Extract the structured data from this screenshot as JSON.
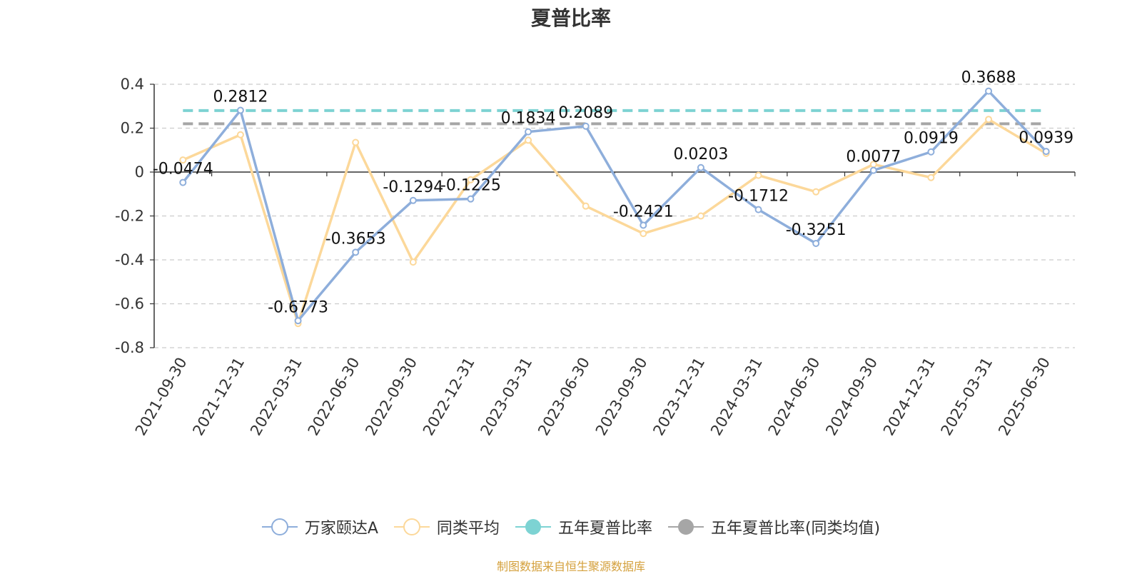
{
  "title": "夏普比率",
  "source_note": "制图数据来自恒生聚源数据库",
  "colors": {
    "series_main": "#8eaedb",
    "series_peer": "#fcd89a",
    "five_year": "#7dd3d3",
    "five_year_peer": "#a6a6a6",
    "source_text": "#d4a03c",
    "grid": "#cccccc",
    "axis": "#333333"
  },
  "chart_data": {
    "type": "line",
    "title": "夏普比率",
    "categories": [
      "2021-09-30",
      "2021-12-31",
      "2022-03-31",
      "2022-06-30",
      "2022-09-30",
      "2022-12-31",
      "2023-03-31",
      "2023-06-30",
      "2023-09-30",
      "2023-12-31",
      "2024-03-31",
      "2024-06-30",
      "2024-09-30",
      "2024-12-31",
      "2025-03-31",
      "2025-06-30"
    ],
    "y_ticks": [
      0.4,
      0.2,
      0,
      -0.2,
      -0.4,
      -0.6,
      -0.8
    ],
    "y_tick_labels": [
      "0.4",
      "0.2",
      "0",
      "-0.2",
      "-0.4",
      "-0.6",
      "-0.8"
    ],
    "ylim": [
      -0.8,
      0.4
    ],
    "grid": true,
    "legend_position": "bottom",
    "series": [
      {
        "name": "万家颐达A",
        "values": [
          -0.0474,
          0.2812,
          -0.6773,
          -0.3653,
          -0.1294,
          -0.1225,
          0.1834,
          0.2089,
          -0.2421,
          0.0203,
          -0.1712,
          -0.3251,
          0.0077,
          0.0919,
          0.3688,
          0.0939
        ],
        "labels": [
          "-0.0474",
          "0.2812",
          "-0.6773",
          "-0.3653",
          "-0.1294",
          "-0.1225",
          "0.1834",
          "0.2089",
          "-0.2421",
          "0.0203",
          "-0.1712",
          "-0.3251",
          "0.0077",
          "0.0919",
          "0.3688",
          "0.0939"
        ]
      },
      {
        "name": "同类平均",
        "values": [
          0.055,
          0.17,
          -0.69,
          0.135,
          -0.41,
          -0.035,
          0.145,
          -0.155,
          -0.28,
          -0.2,
          -0.015,
          -0.09,
          0.035,
          -0.025,
          0.24,
          0.085
        ]
      }
    ],
    "reference_lines": [
      {
        "name": "五年夏普比率",
        "value": 0.28
      },
      {
        "name": "五年夏普比率(同类均值)",
        "value": 0.22
      }
    ]
  },
  "legend": [
    {
      "name": "万家颐达A",
      "icon": "hollow-circle-line-icon"
    },
    {
      "name": "同类平均",
      "icon": "hollow-circle-line-icon"
    },
    {
      "name": "五年夏普比率",
      "icon": "filled-circle-line-icon"
    },
    {
      "name": "五年夏普比率(同类均值)",
      "icon": "filled-circle-line-icon"
    }
  ]
}
